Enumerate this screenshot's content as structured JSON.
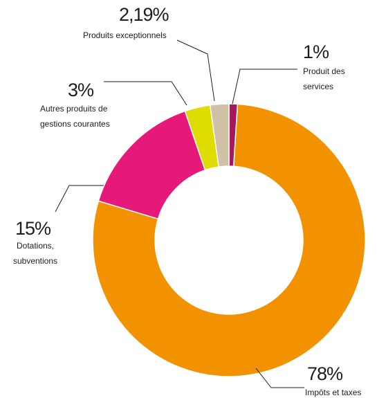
{
  "chart_data": {
    "type": "donut",
    "categories": [
      "Produit des services",
      "Impôts et taxes",
      "Dotations, subventions",
      "Autres produits de gestions courantes",
      "Produits exceptionnels"
    ],
    "values": [
      1,
      78,
      15,
      3,
      2.19
    ],
    "value_labels": [
      "1%",
      "78%",
      "15%",
      "3%",
      "2,19%"
    ],
    "colors": [
      "#a3195b",
      "#f39200",
      "#e6197a",
      "#dedc00",
      "#cfc0a6"
    ]
  }
}
